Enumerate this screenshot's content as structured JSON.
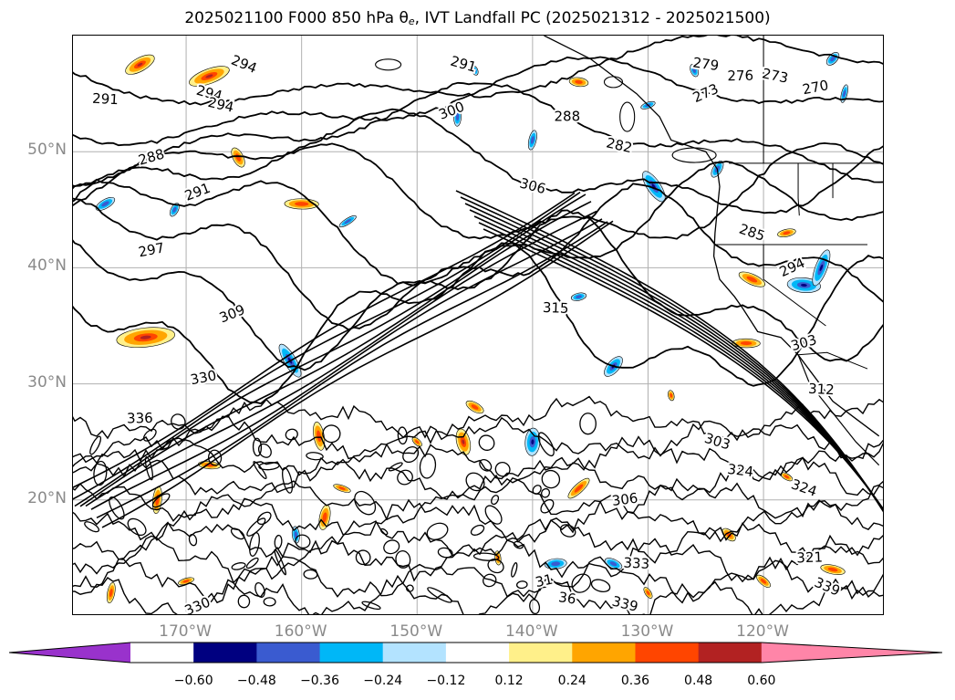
{
  "title": {
    "main_before": "2025021100 F000 850 hPa ",
    "theta": "θ",
    "theta_sub": "e",
    "main_after": ", IVT Landfall PC (2025021312 - 2025021500)"
  },
  "lat_labels": [
    {
      "text": "50°N",
      "lat": 50
    },
    {
      "text": "40°N",
      "lat": 40
    },
    {
      "text": "30°N",
      "lat": 30
    },
    {
      "text": "20°N",
      "lat": 20
    }
  ],
  "lon_labels": [
    {
      "text": "170°W",
      "lon": -170
    },
    {
      "text": "160°W",
      "lon": -160
    },
    {
      "text": "150°W",
      "lon": -150
    },
    {
      "text": "140°W",
      "lon": -140
    },
    {
      "text": "130°W",
      "lon": -130
    },
    {
      "text": "120°W",
      "lon": -120
    }
  ],
  "contour_labels": [
    {
      "text": "291",
      "lon": -177,
      "lat": 54.5
    },
    {
      "text": "294",
      "lon": -165,
      "lat": 57.5
    },
    {
      "text": "294",
      "lon": -168,
      "lat": 55
    },
    {
      "text": "294",
      "lon": -167,
      "lat": 54
    },
    {
      "text": "291",
      "lon": -146,
      "lat": 57.5
    },
    {
      "text": "300",
      "lon": -147,
      "lat": 53.5
    },
    {
      "text": "288",
      "lon": -137,
      "lat": 53
    },
    {
      "text": "282",
      "lon": -132.5,
      "lat": 50.5
    },
    {
      "text": "279",
      "lon": -125,
      "lat": 57.5
    },
    {
      "text": "276",
      "lon": -122,
      "lat": 56.5
    },
    {
      "text": "273",
      "lon": -119,
      "lat": 56.5
    },
    {
      "text": "270",
      "lon": -115.5,
      "lat": 55.5
    },
    {
      "text": "273",
      "lon": -125,
      "lat": 55
    },
    {
      "text": "288",
      "lon": -173,
      "lat": 49.5
    },
    {
      "text": "291",
      "lon": -169,
      "lat": 46.5
    },
    {
      "text": "306",
      "lon": -140,
      "lat": 47
    },
    {
      "text": "297",
      "lon": -173,
      "lat": 41.5
    },
    {
      "text": "285",
      "lon": -121,
      "lat": 43
    },
    {
      "text": "294",
      "lon": -117.5,
      "lat": 40
    },
    {
      "text": "315",
      "lon": -138,
      "lat": 36.5
    },
    {
      "text": "309",
      "lon": -166,
      "lat": 36
    },
    {
      "text": "330",
      "lon": -168.5,
      "lat": 30.5
    },
    {
      "text": "303",
      "lon": -116.5,
      "lat": 33.5
    },
    {
      "text": "312",
      "lon": -115,
      "lat": 29.5
    },
    {
      "text": "336",
      "lon": -174,
      "lat": 27
    },
    {
      "text": "303",
      "lon": -124,
      "lat": 25
    },
    {
      "text": "324",
      "lon": -122,
      "lat": 22.5
    },
    {
      "text": "324",
      "lon": -116.5,
      "lat": 21
    },
    {
      "text": "306",
      "lon": -132,
      "lat": 20
    },
    {
      "text": "333",
      "lon": -131,
      "lat": 14.5
    },
    {
      "text": "321",
      "lon": -116,
      "lat": 15
    },
    {
      "text": "339",
      "lon": -114.5,
      "lat": 12.5
    },
    {
      "text": "339",
      "lon": -132,
      "lat": 11
    },
    {
      "text": "36",
      "lon": -137,
      "lat": 11.5
    },
    {
      "text": "330",
      "lon": -169,
      "lat": 10.8
    },
    {
      "text": "31",
      "lon": -139,
      "lat": 13
    }
  ],
  "colorbar": {
    "levels": [
      -0.72,
      -0.6,
      -0.48,
      -0.36,
      -0.24,
      -0.12,
      0.12,
      0.24,
      0.36,
      0.48,
      0.6,
      0.72
    ],
    "colors": [
      "#000080",
      "#3a5bd0",
      "#00b7f7",
      "#b3e3ff",
      "#ffffff",
      "#fff08a",
      "#ffa500",
      "#ff4500",
      "#b22222"
    ],
    "under_color": "#9932cc",
    "over_color": "#ff85a8",
    "tick_labels": [
      "−0.60",
      "−0.48",
      "−0.36",
      "−0.24",
      "−0.12",
      "0.12",
      "0.24",
      "0.36",
      "0.48",
      "0.60"
    ]
  }
}
